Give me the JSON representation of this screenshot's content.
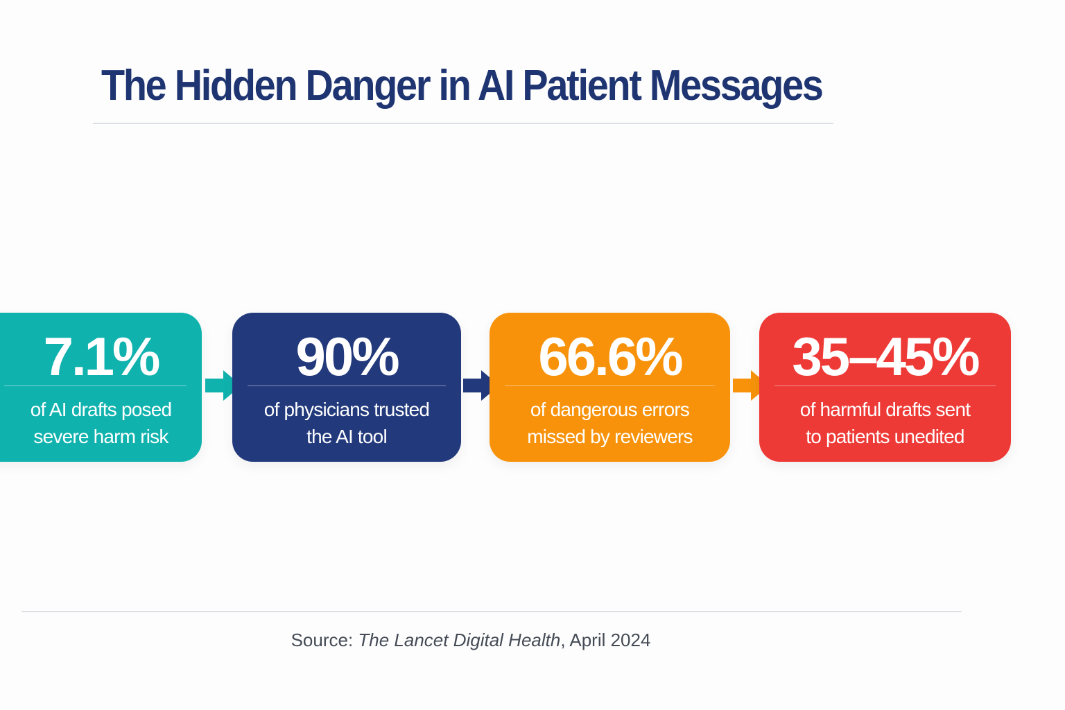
{
  "title": "The Hidden Danger in AI Patient Messages",
  "cards": [
    {
      "value": "7.1%",
      "line1": "of AI drafts posed",
      "line2": "severe harm risk",
      "color": "#10b2ae"
    },
    {
      "value": "90%",
      "line1": "of physicians trusted",
      "line2": "the AI tool",
      "color": "#22397c"
    },
    {
      "value": "66.6%",
      "line1": "of dangerous errors",
      "line2": "missed by reviewers",
      "color": "#f7920a"
    },
    {
      "value": "35–45%",
      "line1": "of harmful drafts sent",
      "line2": "to patients unedited",
      "color": "#ee3a37"
    }
  ],
  "source": {
    "prefix": "Source: ",
    "publication": "The Lancet Digital Health",
    "date": ", April 2024"
  }
}
